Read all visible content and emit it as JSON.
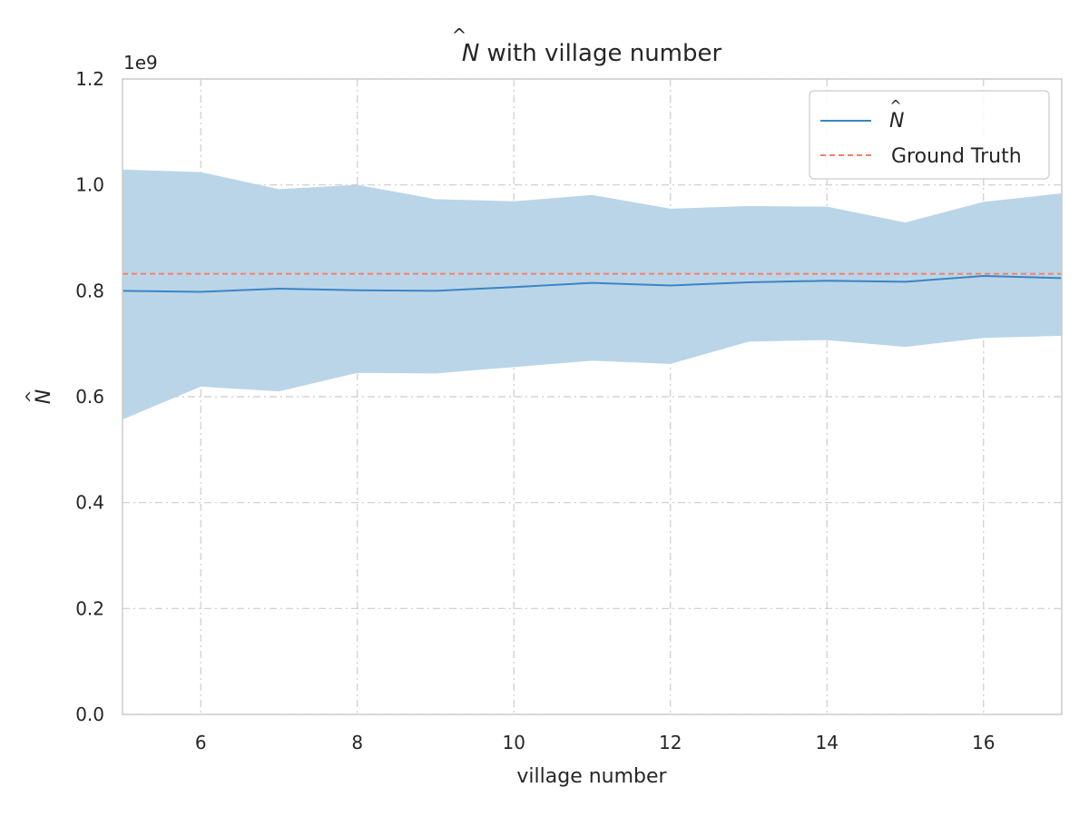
{
  "chart_data": {
    "type": "line",
    "title_symbol": "N",
    "title_suffix": " with village number",
    "xlabel": "village number",
    "ylabel_symbol": "N",
    "y_offset_text": "1e9",
    "xlim": [
      5,
      17
    ],
    "ylim": [
      0,
      1200000000
    ],
    "x_ticks": [
      6,
      8,
      10,
      12,
      14,
      16
    ],
    "x_tick_labels": [
      "6",
      "8",
      "10",
      "12",
      "14",
      "16"
    ],
    "y_ticks": [
      0,
      200000000,
      400000000,
      600000000,
      800000000,
      1000000000,
      1200000000
    ],
    "y_tick_labels": [
      "0.0",
      "0.2",
      "0.4",
      "0.6",
      "0.8",
      "1.0",
      "1.2"
    ],
    "grid": true,
    "legend_position": "top-right",
    "x": [
      5,
      6,
      7,
      8,
      9,
      10,
      11,
      12,
      13,
      14,
      15,
      16,
      17
    ],
    "series": [
      {
        "name": "N",
        "legend_label": "N",
        "style": "solid",
        "color": "#3a85c2",
        "values": [
          800000000,
          798000000,
          804000000,
          801000000,
          800000000,
          807000000,
          815000000,
          810000000,
          816000000,
          819000000,
          817000000,
          828000000,
          824000000
        ]
      },
      {
        "name": "Ground Truth",
        "legend_label": "Ground Truth",
        "style": "dashed",
        "color": "#f4806c",
        "values": [
          832000000,
          832000000,
          832000000,
          832000000,
          832000000,
          832000000,
          832000000,
          832000000,
          832000000,
          832000000,
          832000000,
          832000000,
          832000000
        ]
      }
    ],
    "band": {
      "color": "#bad5e8",
      "upper": [
        1029000000,
        1024000000,
        992000000,
        1000000000,
        973000000,
        969000000,
        981000000,
        955000000,
        960000000,
        959000000,
        929000000,
        968000000,
        984000000
      ],
      "lower": [
        557000000,
        619000000,
        610000000,
        645000000,
        644000000,
        656000000,
        668000000,
        662000000,
        704000000,
        707000000,
        694000000,
        711000000,
        715000000
      ]
    }
  }
}
